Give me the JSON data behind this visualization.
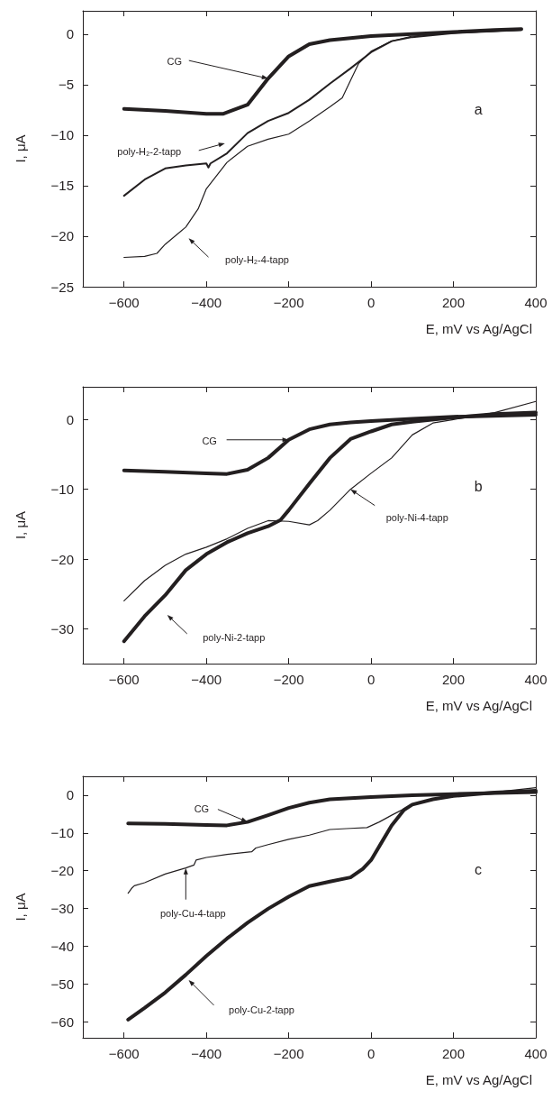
{
  "chart_data": [
    {
      "type": "line",
      "xlabel": "E, mV vs Ag/AgCl",
      "ylabel": "I, μA",
      "xlim": [
        -700,
        400
      ],
      "xticks": [
        -600,
        -400,
        -200,
        0,
        200,
        400
      ],
      "ylim": [
        -25,
        2.3
      ],
      "yticks": [
        -25,
        -20,
        -15,
        -10,
        -5,
        0
      ],
      "grid": false,
      "marker": "none",
      "line_style": "solid",
      "series": [
        {
          "color": "#231f20",
          "x": [
            -600,
            -500,
            -400,
            -360,
            -300,
            -250,
            -200,
            -150,
            -100,
            -50,
            0,
            100,
            200,
            300,
            365
          ],
          "values": [
            -7.4,
            -7.6,
            -7.9,
            -7.9,
            -7.0,
            -4.4,
            -2.2,
            -1.0,
            -0.6,
            -0.4,
            -0.2,
            0.0,
            0.2,
            0.4,
            0.5
          ]
        },
        {
          "color": "#231f20",
          "x": [
            -600,
            -550,
            -500,
            -450,
            -400,
            -395,
            -390,
            -350,
            -300,
            -250,
            -200,
            -150,
            -100,
            -50,
            0,
            50,
            100,
            200,
            365
          ],
          "values": [
            -16,
            -14.4,
            -13.3,
            -13.0,
            -12.8,
            -13.2,
            -12.8,
            -11.8,
            -9.8,
            -8.6,
            -7.8,
            -6.5,
            -4.9,
            -3.4,
            -1.8,
            -0.7,
            -0.3,
            0.1,
            0.4
          ]
        },
        {
          "color": "#231f20",
          "x": [
            -600,
            -550,
            -520,
            -500,
            -450,
            -420,
            -400,
            -350,
            -300,
            -250,
            -200,
            -150,
            -100,
            -70,
            -50,
            -30,
            0,
            50,
            100,
            200,
            365
          ],
          "values": [
            -22.1,
            -22.0,
            -21.7,
            -20.8,
            -19.1,
            -17.3,
            -15.3,
            -12.7,
            -11.1,
            -10.4,
            -9.9,
            -8.6,
            -7.2,
            -6.3,
            -4.6,
            -2.9,
            -1.7,
            -0.7,
            -0.2,
            0.1,
            0.4
          ]
        }
      ],
      "annotations": [
        {
          "text": "CG",
          "x": -250,
          "y": -4.4
        },
        "poly-H₂-2-tapp",
        "poly-H₂-4-tapp",
        "a"
      ]
    },
    {
      "type": "line",
      "xlabel": "E, mV vs Ag/AgCl",
      "ylabel": "I, μA",
      "xlim": [
        -700,
        400
      ],
      "xticks": [
        -600,
        -400,
        -200,
        0,
        200,
        400
      ],
      "ylim": [
        -35,
        4.7
      ],
      "yticks": [
        -30,
        -20,
        -10,
        0
      ],
      "grid": false,
      "marker": "none",
      "line_style": "solid",
      "series": [
        {
          "color": "#231f20",
          "x": [
            -600,
            -500,
            -400,
            -350,
            -300,
            -250,
            -200,
            -150,
            -100,
            -50,
            0,
            100,
            200,
            400
          ],
          "values": [
            -7.3,
            -7.5,
            -7.7,
            -7.8,
            -7.2,
            -5.5,
            -2.9,
            -1.4,
            -0.7,
            -0.4,
            -0.2,
            0.1,
            0.4,
            0.7
          ]
        },
        {
          "color": "#231f20",
          "x": [
            -600,
            -550,
            -500,
            -450,
            -400,
            -350,
            -300,
            -250,
            -220,
            -200,
            -150,
            -100,
            -50,
            0,
            50,
            100,
            200,
            300,
            400
          ],
          "values": [
            -31.8,
            -28.2,
            -25.2,
            -21.6,
            -19.3,
            -17.6,
            -16.3,
            -15.3,
            -14.4,
            -13.0,
            -9.2,
            -5.5,
            -2.8,
            -1.7,
            -0.7,
            -0.3,
            0.3,
            0.8,
            1.0
          ]
        },
        {
          "color": "#231f20",
          "x": [
            -600,
            -550,
            -500,
            -450,
            -400,
            -350,
            -300,
            -250,
            -200,
            -150,
            -130,
            -100,
            -50,
            0,
            50,
            100,
            150,
            200,
            300,
            400
          ],
          "values": [
            -26.0,
            -23.1,
            -20.9,
            -19.3,
            -18.3,
            -17.1,
            -15.6,
            -14.5,
            -14.6,
            -15.1,
            -14.5,
            -13.0,
            -10.0,
            -7.7,
            -5.5,
            -2.2,
            -0.5,
            0.0,
            1.0,
            2.6
          ]
        }
      ],
      "annotations": [
        {
          "text": "CG",
          "x": -200,
          "y": -2.9
        },
        {
          "text": "poly-Ni-4-tapp",
          "x": -50,
          "y": -10.0
        },
        "poly-Ni-2-tapp",
        "b"
      ]
    },
    {
      "type": "line",
      "xlabel": "E, mV vs Ag/AgCl",
      "ylabel": "I, μA",
      "xlim": [
        -700,
        400
      ],
      "xticks": [
        -600,
        -400,
        -200,
        0,
        200,
        400
      ],
      "ylim": [
        -64.3,
        5
      ],
      "yticks": [
        -60,
        -50,
        -40,
        -30,
        -20,
        -10,
        0
      ],
      "grid": false,
      "marker": "none",
      "line_style": "solid",
      "series": [
        {
          "color": "#231f20",
          "x": [
            -590,
            -500,
            -400,
            -350,
            -300,
            -250,
            -200,
            -150,
            -100,
            -50,
            0,
            100,
            200,
            400
          ],
          "values": [
            -7.5,
            -7.6,
            -7.9,
            -8.0,
            -7.1,
            -5.3,
            -3.4,
            -2.0,
            -1.1,
            -0.8,
            -0.5,
            0.0,
            0.3,
            0.8
          ]
        },
        {
          "color": "#231f20",
          "x": [
            -590,
            -580,
            -575,
            -550,
            -500,
            -450,
            -430,
            -425,
            -400,
            -350,
            -290,
            -280,
            -250,
            -200,
            -150,
            -120,
            -100,
            -50,
            -10,
            20,
            50,
            100,
            150,
            200,
            300,
            400
          ],
          "values": [
            -26.0,
            -24.5,
            -24.0,
            -23.2,
            -20.9,
            -19.3,
            -18.5,
            -17.2,
            -16.5,
            -15.7,
            -15.0,
            -14.0,
            -13.1,
            -11.7,
            -10.6,
            -9.7,
            -9.1,
            -8.8,
            -8.6,
            -7.1,
            -5.3,
            -2.5,
            -1.0,
            0.0,
            0.8,
            2.0
          ]
        },
        {
          "color": "#231f20",
          "x": [
            -590,
            -550,
            -500,
            -450,
            -400,
            -350,
            -300,
            -250,
            -200,
            -150,
            -100,
            -50,
            -20,
            0,
            30,
            50,
            80,
            100,
            150,
            200,
            300,
            400
          ],
          "values": [
            -59.5,
            -56.4,
            -52.3,
            -47.6,
            -42.6,
            -38.0,
            -33.8,
            -30.1,
            -26.9,
            -24.1,
            -22.9,
            -21.8,
            -19.5,
            -17.2,
            -11.7,
            -8.0,
            -3.9,
            -2.5,
            -1.1,
            -0.2,
            0.7,
            1.2
          ]
        }
      ],
      "annotations": [
        {
          "text": "CG",
          "x": -300,
          "y": -7.1
        },
        {
          "text": "poly-Cu-4-tapp",
          "x": -450,
          "y": -19.3
        },
        "poly-Cu-2-tapp",
        "c"
      ]
    }
  ]
}
